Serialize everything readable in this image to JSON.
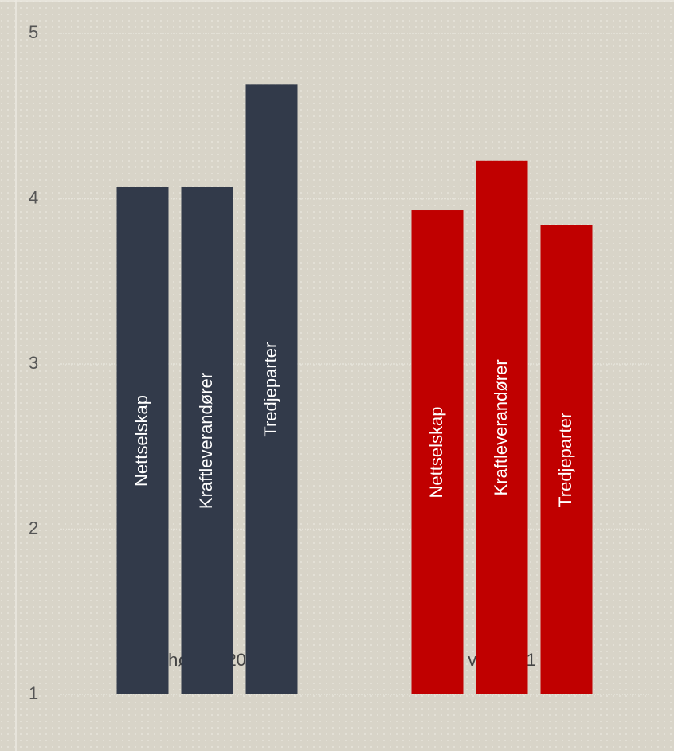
{
  "chart_data": {
    "type": "bar",
    "categories": [
      "høst 2020",
      "vår 2021"
    ],
    "category_colors": [
      "#323a4a",
      "#c00000"
    ],
    "series": [
      {
        "name": "Nettselskap",
        "values": [
          4.07,
          3.93
        ]
      },
      {
        "name": "Kraftleverandører",
        "values": [
          4.07,
          4.23
        ]
      },
      {
        "name": "Tredjeparter",
        "values": [
          4.69,
          3.84
        ]
      }
    ],
    "ylim": [
      1,
      5
    ],
    "yticks": [
      1,
      2,
      3,
      4,
      5
    ],
    "grid": true
  }
}
